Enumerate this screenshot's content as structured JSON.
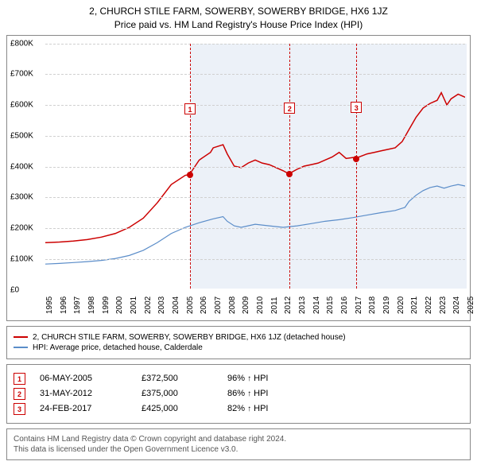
{
  "title": {
    "line1": "2, CHURCH STILE FARM, SOWERBY, SOWERBY BRIDGE, HX6 1JZ",
    "line2": "Price paid vs. HM Land Registry's House Price Index (HPI)"
  },
  "chart": {
    "type": "line",
    "background_color": "#ffffff",
    "grid_color": "#d0d0d0",
    "border_color": "#888888",
    "x_range": [
      1995,
      2025
    ],
    "y_range": [
      0,
      800
    ],
    "y_unit_prefix": "£",
    "y_unit_suffix": "K",
    "y_ticks": [
      0,
      100,
      200,
      300,
      400,
      500,
      600,
      700,
      800
    ],
    "x_ticks": [
      1995,
      1996,
      1997,
      1998,
      1999,
      2000,
      2001,
      2002,
      2003,
      2004,
      2005,
      2006,
      2007,
      2008,
      2009,
      2010,
      2011,
      2012,
      2013,
      2014,
      2015,
      2016,
      2017,
      2018,
      2019,
      2020,
      2021,
      2022,
      2023,
      2024,
      2025
    ],
    "shaded_bands": [
      {
        "from": 2005.3,
        "to": 2012.4,
        "color": "rgba(100,140,200,0.12)"
      },
      {
        "from": 2012.4,
        "to": 2017.15,
        "color": "rgba(100,140,200,0.12)"
      },
      {
        "from": 2017.15,
        "to": 2025,
        "color": "rgba(100,140,200,0.12)"
      }
    ],
    "series": [
      {
        "id": "property",
        "label": "2, CHURCH STILE FARM, SOWERBY, SOWERBY BRIDGE, HX6 1JZ (detached house)",
        "color": "#cc0000",
        "line_width": 1.5,
        "data": [
          [
            1995,
            150
          ],
          [
            1996,
            152
          ],
          [
            1997,
            155
          ],
          [
            1998,
            160
          ],
          [
            1999,
            168
          ],
          [
            2000,
            180
          ],
          [
            2001,
            200
          ],
          [
            2002,
            230
          ],
          [
            2003,
            280
          ],
          [
            2004,
            340
          ],
          [
            2005,
            370
          ],
          [
            2005.3,
            372.5
          ],
          [
            2006,
            420
          ],
          [
            2006.8,
            445
          ],
          [
            2007,
            460
          ],
          [
            2007.7,
            470
          ],
          [
            2008,
            440
          ],
          [
            2008.5,
            400
          ],
          [
            2009,
            395
          ],
          [
            2009.5,
            410
          ],
          [
            2010,
            420
          ],
          [
            2010.5,
            410
          ],
          [
            2011,
            405
          ],
          [
            2011.5,
            395
          ],
          [
            2012,
            385
          ],
          [
            2012.4,
            375
          ],
          [
            2013,
            390
          ],
          [
            2013.5,
            400
          ],
          [
            2014,
            405
          ],
          [
            2014.5,
            410
          ],
          [
            2015,
            420
          ],
          [
            2015.5,
            430
          ],
          [
            2016,
            445
          ],
          [
            2016.5,
            425
          ],
          [
            2017,
            428
          ],
          [
            2017.15,
            425
          ],
          [
            2018,
            440
          ],
          [
            2018.5,
            445
          ],
          [
            2019,
            450
          ],
          [
            2019.5,
            455
          ],
          [
            2020,
            460
          ],
          [
            2020.5,
            480
          ],
          [
            2021,
            520
          ],
          [
            2021.5,
            560
          ],
          [
            2022,
            590
          ],
          [
            2022.5,
            605
          ],
          [
            2023,
            615
          ],
          [
            2023.3,
            640
          ],
          [
            2023.7,
            600
          ],
          [
            2024,
            620
          ],
          [
            2024.5,
            635
          ],
          [
            2025,
            625
          ]
        ]
      },
      {
        "id": "hpi",
        "label": "HPI: Average price, detached house, Calderdale",
        "color": "#5b8dc9",
        "line_width": 1.2,
        "data": [
          [
            1995,
            80
          ],
          [
            1996,
            82
          ],
          [
            1997,
            85
          ],
          [
            1998,
            88
          ],
          [
            1999,
            92
          ],
          [
            2000,
            98
          ],
          [
            2001,
            108
          ],
          [
            2002,
            125
          ],
          [
            2003,
            150
          ],
          [
            2004,
            180
          ],
          [
            2005,
            200
          ],
          [
            2006,
            215
          ],
          [
            2007,
            228
          ],
          [
            2007.7,
            235
          ],
          [
            2008,
            220
          ],
          [
            2008.5,
            205
          ],
          [
            2009,
            200
          ],
          [
            2010,
            210
          ],
          [
            2011,
            205
          ],
          [
            2012,
            200
          ],
          [
            2013,
            205
          ],
          [
            2014,
            212
          ],
          [
            2015,
            220
          ],
          [
            2016,
            225
          ],
          [
            2017,
            232
          ],
          [
            2018,
            240
          ],
          [
            2019,
            248
          ],
          [
            2020,
            255
          ],
          [
            2020.7,
            265
          ],
          [
            2021,
            285
          ],
          [
            2021.5,
            305
          ],
          [
            2022,
            320
          ],
          [
            2022.5,
            330
          ],
          [
            2023,
            335
          ],
          [
            2023.5,
            328
          ],
          [
            2024,
            335
          ],
          [
            2024.5,
            340
          ],
          [
            2025,
            335
          ]
        ]
      }
    ],
    "markers": [
      {
        "num": "1",
        "x": 2005.3,
        "y": 372.5,
        "label_y_offset": -90
      },
      {
        "num": "2",
        "x": 2012.4,
        "y": 375,
        "label_y_offset": -90
      },
      {
        "num": "3",
        "x": 2017.15,
        "y": 425,
        "label_y_offset": -72
      }
    ],
    "axis_fontsize": 10
  },
  "legend": {
    "items": [
      {
        "color": "#cc0000",
        "label": "2, CHURCH STILE FARM, SOWERBY, SOWERBY BRIDGE, HX6 1JZ (detached house)"
      },
      {
        "color": "#5b8dc9",
        "label": "HPI: Average price, detached house, Calderdale"
      }
    ]
  },
  "transactions": [
    {
      "num": "1",
      "date": "06-MAY-2005",
      "price": "£372,500",
      "pct": "96%",
      "arrow": "↑",
      "suffix": "HPI"
    },
    {
      "num": "2",
      "date": "31-MAY-2012",
      "price": "£375,000",
      "pct": "86%",
      "arrow": "↑",
      "suffix": "HPI"
    },
    {
      "num": "3",
      "date": "24-FEB-2017",
      "price": "£425,000",
      "pct": "82%",
      "arrow": "↑",
      "suffix": "HPI"
    }
  ],
  "footer": {
    "line1": "Contains HM Land Registry data © Crown copyright and database right 2024.",
    "line2": "This data is licensed under the Open Government Licence v3.0."
  },
  "colors": {
    "marker_border": "#cc0000",
    "text": "#000000",
    "footer_text": "#555555"
  }
}
